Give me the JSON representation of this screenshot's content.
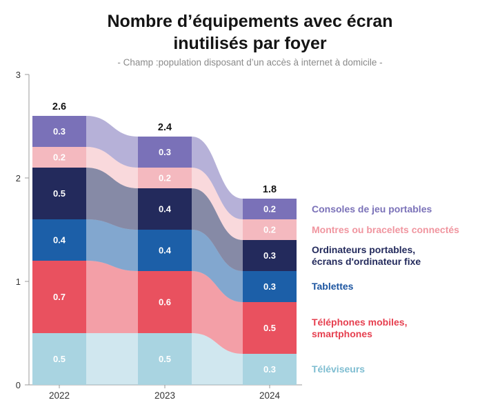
{
  "title": {
    "line1": "Nombre d’équipements avec écran",
    "line2": "inutilisés par foyer"
  },
  "subtitle": "- Champ :population disposant d’un accès à internet à domicile -",
  "chart_data": {
    "type": "bar",
    "variant": "stacked-columns-with-flow",
    "x": [
      "2022",
      "2023",
      "2024"
    ],
    "totals": [
      2.6,
      2.4,
      1.8
    ],
    "ylim": [
      0,
      3
    ],
    "yticks": [
      0,
      1,
      2,
      3
    ],
    "grid": false,
    "legend_position": "right",
    "axis_color": "#9a9a9a",
    "tick_label_color": "#333333",
    "total_label_color": "#141414",
    "segment_label_color": "#ffffff",
    "series": [
      {
        "name": "Consoles de jeu portables",
        "color": "#7A71B8",
        "legend_color": "#7A71B8",
        "values": [
          0.3,
          0.3,
          0.2
        ]
      },
      {
        "name": "Montres ou bracelets connectés",
        "color": "#F4B9BF",
        "legend_color": "#F0959F",
        "values": [
          0.2,
          0.2,
          0.2
        ]
      },
      {
        "name": "Ordinateurs portables,\nécrans d'ordinateur fixe",
        "color": "#232A5C",
        "legend_color": "#232A5C",
        "values": [
          0.5,
          0.4,
          0.3
        ]
      },
      {
        "name": "Tablettes",
        "color": "#1C5FA8",
        "legend_color": "#1C55A0",
        "values": [
          0.4,
          0.4,
          0.3
        ]
      },
      {
        "name": "Téléphones mobiles,\nsmartphones",
        "color": "#E9515F",
        "legend_color": "#E63F4F",
        "values": [
          0.7,
          0.6,
          0.5
        ]
      },
      {
        "name": "Téléviseurs",
        "color": "#A9D4E1",
        "legend_color": "#7EBDD1",
        "values": [
          0.5,
          0.5,
          0.3
        ]
      }
    ]
  }
}
